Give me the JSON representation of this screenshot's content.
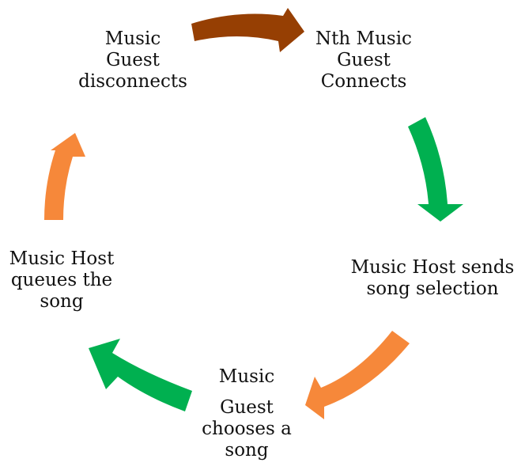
{
  "diagram": {
    "steps": [
      {
        "lines": [
          "Music",
          "Guest",
          "disconnects"
        ]
      },
      {
        "lines": [
          "Nth Music",
          "Guest",
          "Connects"
        ]
      },
      {
        "lines": [
          "Music Host sends",
          "song selection"
        ]
      },
      {
        "lines": [
          "Music",
          "Guest",
          "chooses a",
          "song"
        ]
      },
      {
        "lines": [
          "Music Host",
          "queues the",
          "song"
        ]
      }
    ],
    "arrows": [
      {
        "color": "#963f03"
      },
      {
        "color": "#00b050"
      },
      {
        "color": "#f6883a"
      },
      {
        "color": "#00b050"
      },
      {
        "color": "#f6883a"
      }
    ]
  }
}
